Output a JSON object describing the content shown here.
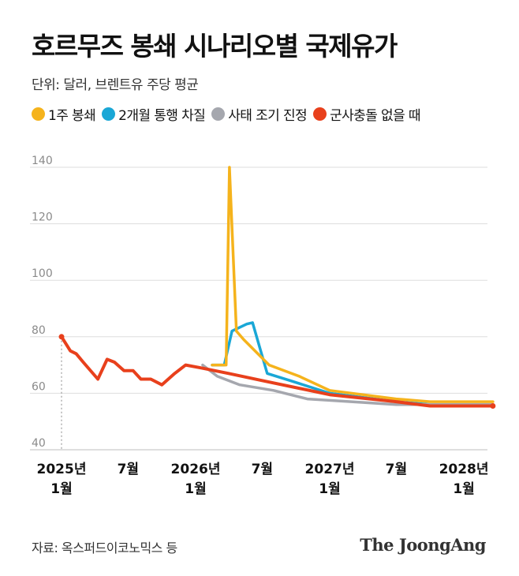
{
  "header": {
    "title": "호르무즈 봉쇄 시나리오별 국제유가",
    "subtitle": "단위: 달러, 브렌트유 주당 평균"
  },
  "source": "자료: 옥스퍼드이코노믹스 등",
  "logo": "The JoongAng",
  "chart_data": {
    "type": "line",
    "title": "호르무즈 봉쇄 시나리오별 국제유가",
    "subtitle": "단위: 달러, 브렌트유 주당 평균",
    "ylim": [
      40,
      140
    ],
    "xlim": [
      "2025-01",
      "2028-03"
    ],
    "yticks": [
      {
        "value": 140,
        "label": "140"
      },
      {
        "value": 120,
        "label": "120"
      },
      {
        "value": 100,
        "label": "100"
      },
      {
        "value": 80,
        "label": "80"
      },
      {
        "value": 60,
        "label": "60"
      },
      {
        "value": 40,
        "label": "40"
      }
    ],
    "xticks": [
      {
        "date": "2025-01",
        "label": "2025년",
        "label2": "1월"
      },
      {
        "date": "2025-07",
        "label": "7월",
        "label2": ""
      },
      {
        "date": "2026-01",
        "label": "2026년",
        "label2": "1월"
      },
      {
        "date": "2026-07",
        "label": "7월",
        "label2": ""
      },
      {
        "date": "2027-01",
        "label": "2027년",
        "label2": "1월"
      },
      {
        "date": "2027-07",
        "label": "7월",
        "label2": ""
      },
      {
        "date": "2028-01",
        "label": "2028년",
        "label2": "1월"
      }
    ],
    "grid": true,
    "legend": "top",
    "series": [
      {
        "name": "1주 봉쇄",
        "color": "#f5b31c",
        "points": [
          [
            "2026-02-15",
            70
          ],
          [
            "2026-03-25",
            70
          ],
          [
            "2026-04-03",
            140
          ],
          [
            "2026-04-22",
            82
          ],
          [
            "2026-05-12",
            79
          ],
          [
            "2026-07-20",
            70
          ],
          [
            "2026-10-10",
            66
          ],
          [
            "2027-01-01",
            61
          ],
          [
            "2027-07-01",
            58
          ],
          [
            "2027-10-01",
            57
          ],
          [
            "2028-03-20",
            57
          ]
        ]
      },
      {
        "name": "2개월 통행 차질",
        "color": "#1aa7d6",
        "points": [
          [
            "2026-02-15",
            70
          ],
          [
            "2026-03-20",
            70
          ],
          [
            "2026-04-10",
            82
          ],
          [
            "2026-05-20",
            84.5
          ],
          [
            "2026-06-05",
            85
          ],
          [
            "2026-07-15",
            67
          ],
          [
            "2026-09-15",
            64.5
          ],
          [
            "2027-01-01",
            60
          ],
          [
            "2027-07-01",
            57
          ],
          [
            "2027-10-01",
            56
          ],
          [
            "2028-03-20",
            56
          ]
        ]
      },
      {
        "name": "사태 조기 진정",
        "color": "#a5a7ae",
        "points": [
          [
            "2026-01-20",
            70
          ],
          [
            "2026-03-01",
            66
          ],
          [
            "2026-05-01",
            63
          ],
          [
            "2026-08-01",
            61
          ],
          [
            "2026-11-01",
            58
          ],
          [
            "2027-03-01",
            57
          ],
          [
            "2027-07-01",
            56
          ],
          [
            "2027-10-01",
            56
          ],
          [
            "2028-03-20",
            56
          ]
        ]
      },
      {
        "name": "군사충돌 없을 때",
        "color": "#e8401c",
        "points": [
          [
            "2025-01-01",
            80
          ],
          [
            "2025-01-25",
            75
          ],
          [
            "2025-02-10",
            74
          ],
          [
            "2025-03-01",
            71
          ],
          [
            "2025-04-10",
            65
          ],
          [
            "2025-05-05",
            72
          ],
          [
            "2025-05-25",
            71
          ],
          [
            "2025-06-20",
            68
          ],
          [
            "2025-07-15",
            68
          ],
          [
            "2025-08-05",
            65
          ],
          [
            "2025-09-01",
            65
          ],
          [
            "2025-10-01",
            63
          ],
          [
            "2025-11-05",
            67
          ],
          [
            "2025-12-05",
            70
          ],
          [
            "2026-01-15",
            69
          ],
          [
            "2026-04-01",
            67
          ],
          [
            "2026-07-01",
            64.5
          ],
          [
            "2027-01-01",
            59.5
          ],
          [
            "2027-07-01",
            57
          ],
          [
            "2027-10-01",
            55.5
          ],
          [
            "2028-03-20",
            55.5
          ]
        ]
      }
    ]
  }
}
